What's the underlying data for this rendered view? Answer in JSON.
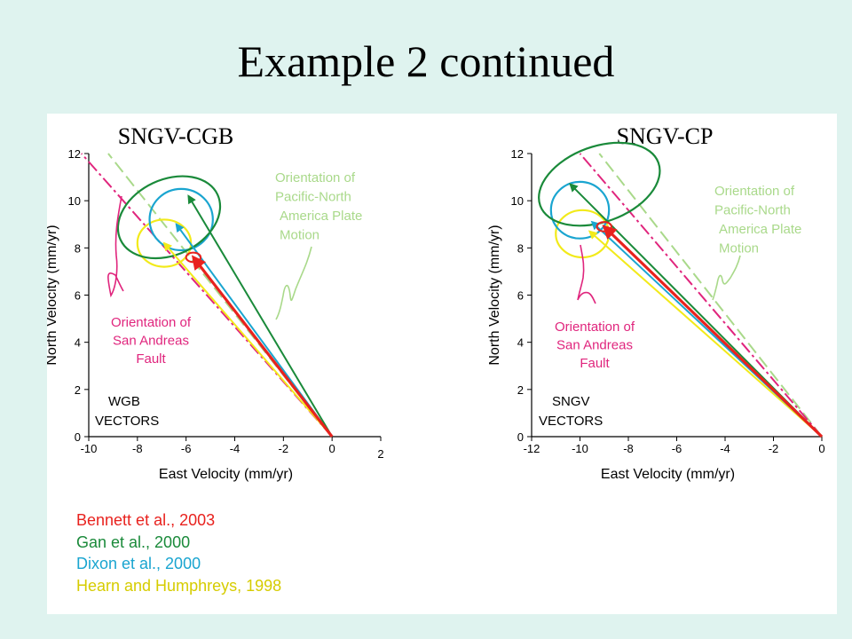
{
  "slide": {
    "title": "Example 2 continued"
  },
  "colors": {
    "bennett": "#e8221e",
    "gan": "#1a8a3a",
    "dixon": "#1aa5d0",
    "hearn": "#f2ea1a",
    "pacific": "#a9d98a",
    "san_andreas": "#e0257d"
  },
  "references": [
    {
      "text": "Bennett et al., 2003",
      "color": "#e8221e"
    },
    {
      "text": "Gan et al., 2000",
      "color": "#1a8a3a"
    },
    {
      "text": "Dixon et al., 2000",
      "color": "#1aa5d0"
    },
    {
      "text": "Hearn and Humphreys, 1998",
      "color": "#d6cc00"
    }
  ],
  "chart_data": [
    {
      "type": "scatter",
      "title": "SNGV-CGB",
      "xlabel": "East Velocity (mm/yr)",
      "ylabel": "North Velocity (mm/yr)",
      "xlim": [
        -10,
        2
      ],
      "ylim": [
        0,
        12
      ],
      "xticks": [
        "-10",
        "-8",
        "-6",
        "-4",
        "-2",
        "0",
        "2"
      ],
      "yticks": [
        "0",
        "2",
        "4",
        "6",
        "8",
        "10",
        "12"
      ],
      "corner_label": [
        "WGB",
        "VECTORS"
      ],
      "annotation_pacific": [
        "Orientation of",
        "Pacific-North",
        "America Plate",
        "Motion"
      ],
      "annotation_san_andreas": [
        "Orientation of",
        "San Andreas",
        "Fault"
      ],
      "series": [
        {
          "name": "Bennett et al., 2003",
          "vector": [
            -5.7,
            7.6
          ],
          "ellipse": {
            "rx": 0.3,
            "ry": 0.2
          }
        },
        {
          "name": "Gan et al., 2000",
          "vector": [
            -5.9,
            10.2
          ],
          "ellipse": {
            "rx": 2.2,
            "ry": 1.6,
            "center": [
              -6.7,
              9.3
            ],
            "angle": -25
          }
        },
        {
          "name": "Dixon et al., 2000",
          "vector": [
            -6.4,
            9.0
          ],
          "ellipse": {
            "rx": 1.3,
            "ry": 1.3,
            "center": [
              -6.2,
              9.2
            ]
          }
        },
        {
          "name": "Hearn and Humphreys, 1998",
          "vector": [
            -6.9,
            8.2
          ],
          "ellipse": {
            "rx": 1.1,
            "ry": 1.0,
            "center": [
              -6.9,
              8.2
            ]
          }
        }
      ],
      "reference_lines": [
        {
          "name": "Pacific-North America Plate Motion",
          "from": [
            0,
            0
          ],
          "to": [
            -9.2,
            12
          ]
        },
        {
          "name": "San Andreas Fault",
          "from": [
            0,
            0
          ],
          "to": [
            -10.3,
            12
          ]
        }
      ]
    },
    {
      "type": "scatter",
      "title": "SNGV-CP",
      "xlabel": "East Velocity (mm/yr)",
      "ylabel": "North Velocity (mm/yr)",
      "xlim": [
        -12,
        0
      ],
      "ylim": [
        0,
        12
      ],
      "xticks": [
        "-12",
        "-10",
        "-8",
        "-6",
        "-4",
        "-2",
        "0"
      ],
      "yticks": [
        "0",
        "2",
        "4",
        "6",
        "8",
        "10",
        "12"
      ],
      "corner_label": [
        "SNGV",
        "VECTORS"
      ],
      "annotation_pacific": [
        "Orientation of",
        "Pacific-North",
        "America Plate",
        "Motion"
      ],
      "annotation_san_andreas": [
        "Orientation of",
        "San Andreas",
        "Fault"
      ],
      "series": [
        {
          "name": "Bennett et al., 2003",
          "vector": [
            -9.0,
            8.9
          ],
          "ellipse": {
            "rx": 0.3,
            "ry": 0.2
          }
        },
        {
          "name": "Gan et al., 2000",
          "vector": [
            -10.4,
            10.7
          ],
          "ellipse": {
            "rx": 2.6,
            "ry": 1.6,
            "center": [
              -9.2,
              10.7
            ],
            "angle": -20
          }
        },
        {
          "name": "Dixon et al., 2000",
          "vector": [
            -9.5,
            9.1
          ],
          "ellipse": {
            "rx": 1.2,
            "ry": 1.2,
            "center": [
              -10.0,
              9.6
            ]
          }
        },
        {
          "name": "Hearn and Humphreys, 1998",
          "vector": [
            -9.6,
            8.7
          ],
          "ellipse": {
            "rx": 1.1,
            "ry": 1.0,
            "center": [
              -9.9,
              8.6
            ]
          }
        }
      ],
      "reference_lines": [
        {
          "name": "Pacific-North America Plate Motion",
          "from": [
            0,
            0
          ],
          "to": [
            -9.2,
            12
          ]
        },
        {
          "name": "San Andreas Fault",
          "from": [
            0,
            0
          ],
          "to": [
            -10.0,
            12
          ]
        }
      ]
    }
  ]
}
